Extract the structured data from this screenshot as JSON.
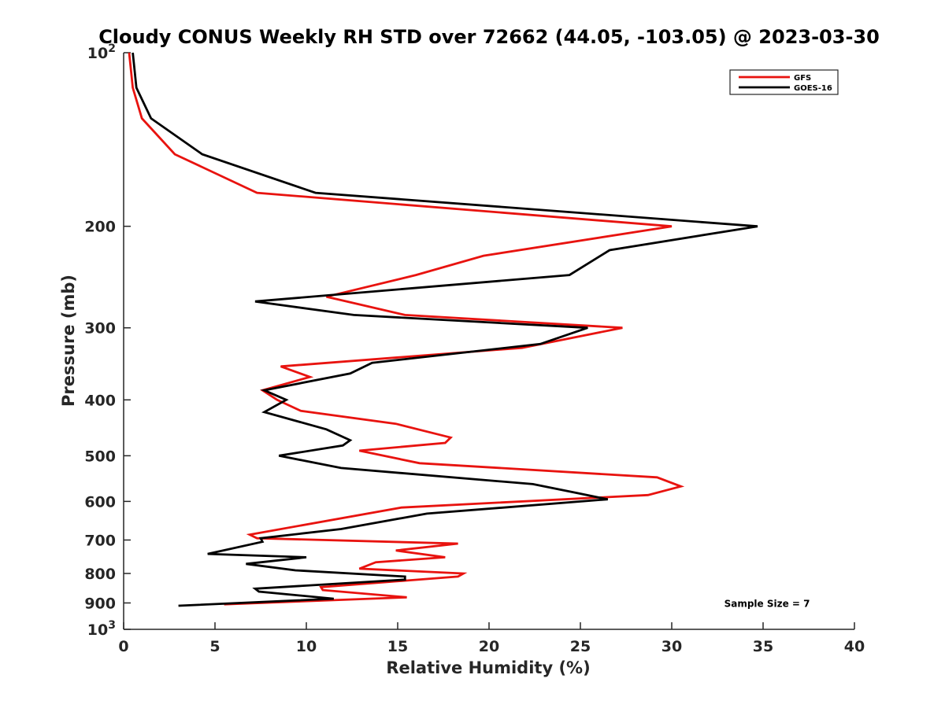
{
  "chart_data": {
    "type": "line",
    "title": "Cloudy CONUS Weekly RH STD over 72662 (44.05, -103.05) @ 2023-03-30",
    "xlabel": "Relative Humidity (%)",
    "ylabel": "Pressure (mb)",
    "xlim": [
      0,
      40
    ],
    "ylim": [
      100,
      1000
    ],
    "y_scale": "log",
    "y_reversed": true,
    "grid": false,
    "legend_position": "top-right",
    "x_ticks": [
      0,
      5,
      10,
      15,
      20,
      25,
      30,
      35,
      40
    ],
    "y_ticks": [
      {
        "value": 100,
        "label": "10",
        "sup": "2"
      },
      {
        "value": 200,
        "label": "200",
        "sup": ""
      },
      {
        "value": 300,
        "label": "300",
        "sup": ""
      },
      {
        "value": 400,
        "label": "400",
        "sup": ""
      },
      {
        "value": 500,
        "label": "500",
        "sup": ""
      },
      {
        "value": 600,
        "label": "600",
        "sup": ""
      },
      {
        "value": 700,
        "label": "700",
        "sup": ""
      },
      {
        "value": 800,
        "label": "800",
        "sup": ""
      },
      {
        "value": 900,
        "label": "900",
        "sup": ""
      },
      {
        "value": 1000,
        "label": "10",
        "sup": "3"
      }
    ],
    "series": [
      {
        "name": "GFS",
        "color": "#e8130f",
        "points": [
          [
            0.3,
            100
          ],
          [
            0.5,
            115
          ],
          [
            1.0,
            130
          ],
          [
            2.8,
            150
          ],
          [
            7.3,
            175
          ],
          [
            30.0,
            200
          ],
          [
            19.7,
            225
          ],
          [
            16.0,
            243
          ],
          [
            11.1,
            265
          ],
          [
            15.4,
            285
          ],
          [
            27.3,
            300
          ],
          [
            21.8,
            325
          ],
          [
            8.6,
            350
          ],
          [
            10.2,
            365
          ],
          [
            7.6,
            385
          ],
          [
            8.4,
            400
          ],
          [
            9.7,
            418
          ],
          [
            14.9,
            440
          ],
          [
            17.9,
            465
          ],
          [
            17.6,
            475
          ],
          [
            12.9,
            490
          ],
          [
            16.2,
            515
          ],
          [
            29.2,
            545
          ],
          [
            30.5,
            565
          ],
          [
            28.7,
            585
          ],
          [
            15.2,
            615
          ],
          [
            6.9,
            685
          ],
          [
            7.3,
            695
          ],
          [
            18.3,
            710
          ],
          [
            14.9,
            730
          ],
          [
            17.6,
            750
          ],
          [
            13.8,
            765
          ],
          [
            12.9,
            785
          ],
          [
            18.6,
            800
          ],
          [
            18.3,
            810
          ],
          [
            10.8,
            845
          ],
          [
            10.9,
            855
          ],
          [
            15.5,
            880
          ],
          [
            5.5,
            905
          ]
        ]
      },
      {
        "name": "GOES-16",
        "color": "#000000",
        "points": [
          [
            0.5,
            100
          ],
          [
            0.7,
            115
          ],
          [
            1.5,
            130
          ],
          [
            4.3,
            150
          ],
          [
            10.5,
            175
          ],
          [
            34.7,
            200
          ],
          [
            26.6,
            220
          ],
          [
            24.4,
            243
          ],
          [
            7.2,
            270
          ],
          [
            12.6,
            285
          ],
          [
            25.4,
            300
          ],
          [
            22.8,
            320
          ],
          [
            13.6,
            345
          ],
          [
            12.4,
            360
          ],
          [
            7.7,
            385
          ],
          [
            8.9,
            400
          ],
          [
            7.7,
            420
          ],
          [
            11.1,
            450
          ],
          [
            12.4,
            470
          ],
          [
            12.0,
            480
          ],
          [
            8.5,
            500
          ],
          [
            11.9,
            525
          ],
          [
            22.4,
            560
          ],
          [
            24.8,
            580
          ],
          [
            26.5,
            595
          ],
          [
            16.6,
            630
          ],
          [
            11.9,
            670
          ],
          [
            7.5,
            695
          ],
          [
            7.6,
            705
          ],
          [
            4.6,
            740
          ],
          [
            10.0,
            750
          ],
          [
            6.7,
            770
          ],
          [
            9.4,
            790
          ],
          [
            15.4,
            810
          ],
          [
            15.4,
            820
          ],
          [
            7.2,
            850
          ],
          [
            7.4,
            860
          ],
          [
            11.5,
            885
          ],
          [
            3.0,
            910
          ]
        ]
      }
    ],
    "annotations": [
      {
        "text": "Sample Size = 7",
        "x": 33.0,
        "y": 900
      }
    ]
  }
}
